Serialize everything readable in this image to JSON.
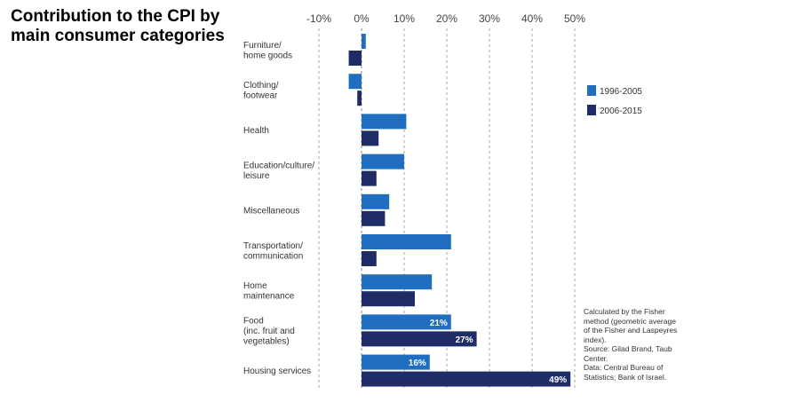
{
  "title": "Contribution to the CPI by main consumer categories",
  "chart_data": {
    "type": "bar",
    "orientation": "horizontal",
    "title": "Contribution to the CPI by main consumer categories",
    "xlabel": "",
    "ylabel": "",
    "xlim": [
      -10,
      50
    ],
    "xticks": [
      -10,
      0,
      10,
      20,
      30,
      40,
      50
    ],
    "xtick_labels": [
      "-10%",
      "0%",
      "10%",
      "20%",
      "30%",
      "40%",
      "50%"
    ],
    "grid": "vertical dashed",
    "legend_position": "right",
    "categories": [
      [
        "Furniture/",
        "home goods"
      ],
      [
        "Clothing/",
        "footwear"
      ],
      [
        "Health"
      ],
      [
        "Education/culture/",
        "leisure"
      ],
      [
        "Miscellaneous"
      ],
      [
        "Transportation/",
        "communication"
      ],
      [
        "Home",
        "maintenance"
      ],
      [
        "Food",
        "(inc. fruit and",
        "vegetables)"
      ],
      [
        "Housing services"
      ]
    ],
    "series": [
      {
        "name": "1996-2005",
        "color": "#1f6ebf",
        "values": [
          1,
          -3,
          10.5,
          10,
          6.5,
          21,
          16.5,
          21,
          16
        ],
        "data_labels": [
          "",
          "",
          "",
          "",
          "",
          "",
          "",
          "21%",
          "16%"
        ]
      },
      {
        "name": "2006-2015",
        "color": "#1f2d66",
        "values": [
          -3,
          -1,
          4,
          3.5,
          5.5,
          3.5,
          12.5,
          27,
          49
        ],
        "data_labels": [
          "",
          "",
          "",
          "",
          "",
          "",
          "",
          "27%",
          "49%"
        ]
      }
    ]
  },
  "notes": [
    "Calculated by the Fisher\nmethod (geometric average\nof the Fisher and Laspeyres\nindex).",
    "Source: Gilad Brand, Taub\nCenter.",
    "Data: Central Bureau of\nStatistics; Bank of Israel."
  ]
}
